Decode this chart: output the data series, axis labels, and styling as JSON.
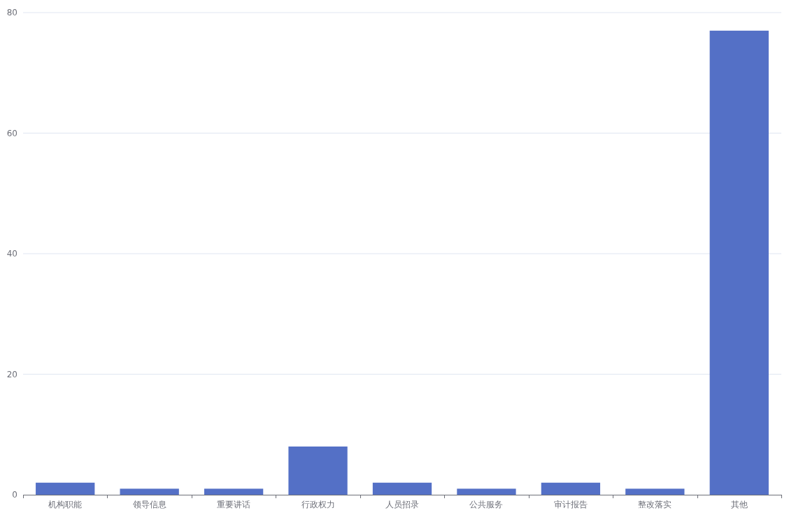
{
  "chart_data": {
    "type": "bar",
    "categories": [
      "机构职能",
      "领导信息",
      "重要讲话",
      "行政权力",
      "人员招录",
      "公共服务",
      "审计报告",
      "整改落实",
      "其他"
    ],
    "values": [
      2,
      1,
      1,
      8,
      2,
      1,
      2,
      1,
      77
    ],
    "color": "#5470c6",
    "ylim": [
      0,
      80
    ],
    "yticks": [
      0,
      20,
      40,
      60,
      80
    ],
    "grid": "y"
  }
}
